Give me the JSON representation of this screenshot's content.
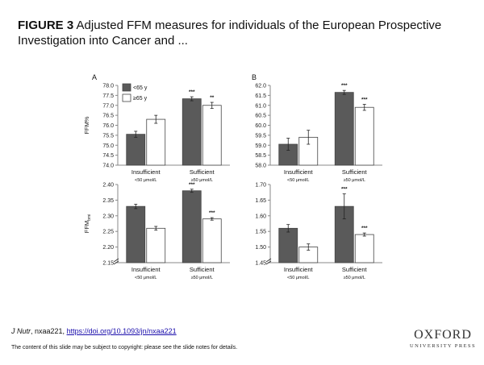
{
  "header": {
    "figure_label": "FIGURE 3",
    "title_text": "Adjusted FFM measures for individuals of the European Prospective Investigation into Cancer and ..."
  },
  "footer": {
    "journal": "J Nutr",
    "citation_rest": ", nxaa221, ",
    "doi": "https://doi.org/10.1093/jn/nxaa221",
    "copyright_note": "The content of this slide may be subject to copyright: please see the slide notes for details.",
    "publisher_line1": "OXFORD",
    "publisher_line2": "UNIVERSITY PRESS"
  },
  "colors": {
    "dark_bar": "#5a5a5a",
    "light_bar": "#ffffff",
    "axis": "#888888"
  },
  "chart_data": [
    {
      "type": "bar",
      "panel_label": "A",
      "ylabel": "FFM%",
      "ylabel_sub": "",
      "ylim": [
        74.0,
        78.0
      ],
      "yticks": [
        "74.0",
        "74.5",
        "75.0",
        "75.5",
        "76.0",
        "76.5",
        "77.0",
        "77.5",
        "78.0"
      ],
      "axis_break": false,
      "categories": [
        "Insufficient",
        "Sufficient"
      ],
      "category_sub": [
        "<50 μmol/L",
        "≥50 μmol/L"
      ],
      "series": [
        {
          "name": "<65 y",
          "values": [
            75.55,
            77.33
          ],
          "error": [
            0.15,
            0.1
          ]
        },
        {
          "name": "≥65 y",
          "values": [
            76.3,
            77.0
          ],
          "error": [
            0.2,
            0.15
          ]
        }
      ],
      "annotations": [
        [
          "",
          "***"
        ],
        [
          "",
          "**"
        ]
      ],
      "legend": {
        "position": "top-left"
      }
    },
    {
      "type": "bar",
      "panel_label": "B",
      "ylabel": "",
      "ylabel_sub": "",
      "ylim": [
        58.0,
        62.0
      ],
      "yticks": [
        "58.0",
        "58.5",
        "59.0",
        "59.5",
        "60.0",
        "60.5",
        "61.0",
        "61.5",
        "62.0"
      ],
      "axis_break": false,
      "categories": [
        "Insufficient",
        "Sufficient"
      ],
      "category_sub": [
        "<50 μmol/L",
        "≥50 μmol/L"
      ],
      "series": [
        {
          "name": "<65 y",
          "values": [
            59.05,
            61.65
          ],
          "error": [
            0.3,
            0.1
          ]
        },
        {
          "name": "≥65 y",
          "values": [
            59.4,
            60.9
          ],
          "error": [
            0.35,
            0.15
          ]
        }
      ],
      "annotations": [
        [
          "",
          "***"
        ],
        [
          "",
          "***"
        ]
      ]
    },
    {
      "type": "bar",
      "panel_label": "",
      "ylabel": "FFM",
      "ylabel_sub": "bmi",
      "ylim": [
        2.15,
        2.4
      ],
      "yticks": [
        "2.15",
        "2.20",
        "2.25",
        "2.30",
        "2.35",
        "2.40"
      ],
      "axis_break": true,
      "categories": [
        "Insufficient",
        "Sufficient"
      ],
      "category_sub": [
        "<50 μmol/L",
        "≥50 μmol/L"
      ],
      "series": [
        {
          "name": "<65 y",
          "values": [
            2.33,
            2.38
          ],
          "error": [
            0.007,
            0.005
          ]
        },
        {
          "name": "≥65 y",
          "values": [
            2.26,
            2.29
          ],
          "error": [
            0.006,
            0.004
          ]
        }
      ],
      "annotations": [
        [
          "",
          "***"
        ],
        [
          "",
          "***"
        ]
      ]
    },
    {
      "type": "bar",
      "panel_label": "",
      "ylabel": "",
      "ylabel_sub": "",
      "ylim": [
        1.45,
        1.7
      ],
      "yticks": [
        "1.45",
        "1.50",
        "1.55",
        "1.60",
        "1.65",
        "1.70"
      ],
      "axis_break": true,
      "categories": [
        "Insufficient",
        "Sufficient"
      ],
      "category_sub": [
        "<50 μmol/L",
        "≥50 μmol/L"
      ],
      "series": [
        {
          "name": "<65 y",
          "values": [
            1.56,
            1.63
          ],
          "error": [
            0.012,
            0.04
          ]
        },
        {
          "name": "≥65 y",
          "values": [
            1.5,
            1.54
          ],
          "error": [
            0.01,
            0.005
          ]
        }
      ],
      "annotations": [
        [
          "",
          "***"
        ],
        [
          "",
          "***"
        ]
      ]
    }
  ]
}
